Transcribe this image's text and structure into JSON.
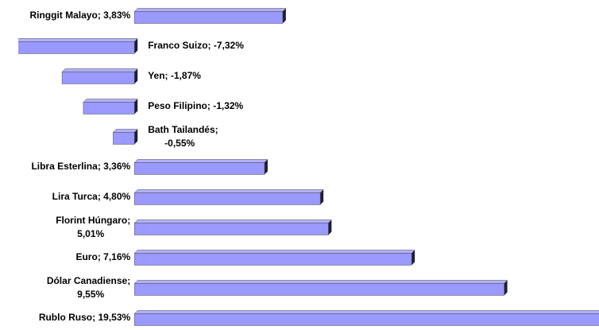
{
  "chart_data": {
    "type": "hbar",
    "categories": [
      "Ringgit Malayo",
      "Franco Suizo",
      "Yen",
      "Peso Filipino",
      "Bath Tailandés",
      "Libra Esterlina",
      "Lira Turca",
      "Florint Húngaro",
      "Euro",
      "Dólar Canadiense",
      "Rublo Ruso"
    ],
    "values": [
      3.83,
      -7.32,
      -1.87,
      -1.32,
      -0.55,
      3.36,
      4.8,
      5.01,
      7.16,
      9.55,
      19.53
    ],
    "value_labels": [
      "3,83%",
      "-7,32%",
      "-1,87%",
      "-1,32%",
      "-0,55%",
      "3,36%",
      "4,80%",
      "5,01%",
      "7,16%",
      "9,55%",
      "19,53%"
    ],
    "label_separator": "; ",
    "color": "#9999ff",
    "xlim": [
      -3,
      12
    ]
  }
}
